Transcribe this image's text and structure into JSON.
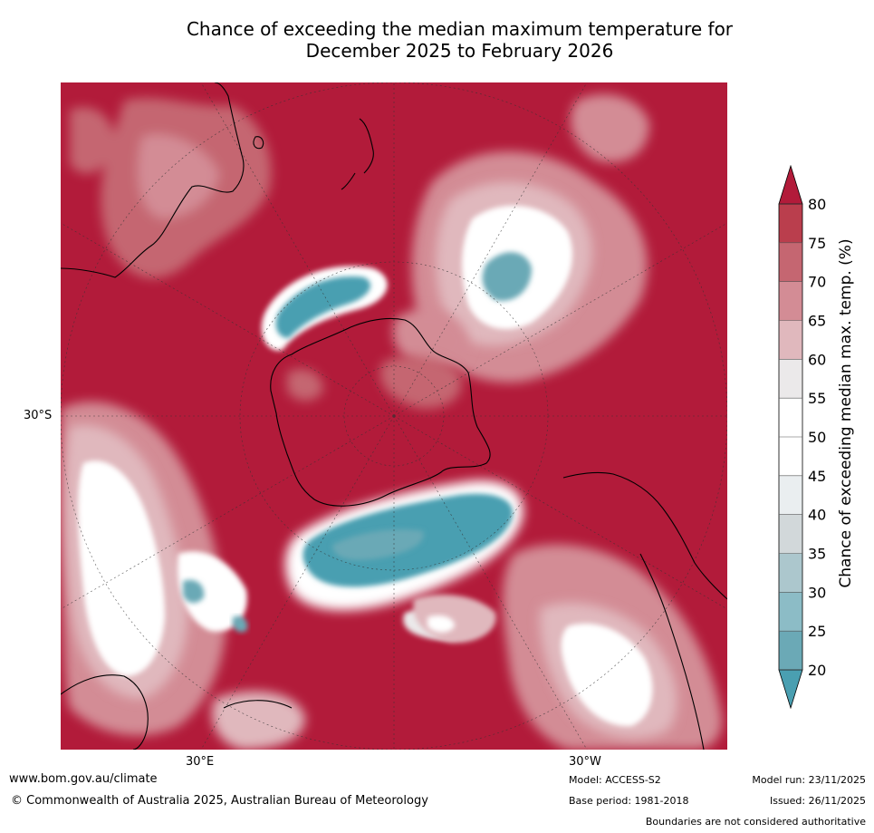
{
  "title": {
    "line1": "Chance of exceeding the median maximum temperature for",
    "line2": "December 2025 to February 2026"
  },
  "map": {
    "projection": "south-polar-stereographic",
    "lat_label": "30°S",
    "lon_labels": [
      "30°E",
      "30°W"
    ],
    "background_category": "80",
    "regions": [
      {
        "name": "near-normal-pacific",
        "category": "50"
      },
      {
        "name": "below-normal-ross-sea",
        "category": "25"
      },
      {
        "name": "below-normal-southern-ocean-indian",
        "category": "25"
      },
      {
        "name": "near-normal-south-atlantic-africa",
        "category": "50"
      },
      {
        "name": "near-normal-brazil",
        "category": "50"
      }
    ]
  },
  "colorbar": {
    "label": "Chance of exceeding median max. temp. (%)",
    "ticks": [
      "20",
      "25",
      "30",
      "35",
      "40",
      "45",
      "50",
      "55",
      "60",
      "65",
      "70",
      "75",
      "80"
    ],
    "colors": [
      "#4a9fb1",
      "#6ba9b6",
      "#8cbcc6",
      "#acc7cd",
      "#d2d8da",
      "#eaeef0",
      "#ffffff",
      "#ffffff",
      "#ebe9ea",
      "#e0b8bd",
      "#d38c95",
      "#c56671",
      "#ba3e4d",
      "#b21b3a"
    ]
  },
  "footer": {
    "url": "www.bom.gov.au/climate",
    "copyright": "© Commonwealth of Australia 2025, Australian Bureau of Meteorology",
    "model": "Model: ACCESS-S2",
    "base_period": "Base period: 1981-2018",
    "model_run": "Model run: 23/11/2025",
    "issued": "Issued: 26/11/2025",
    "disclaimer": "Boundaries are not considered authoritative"
  }
}
